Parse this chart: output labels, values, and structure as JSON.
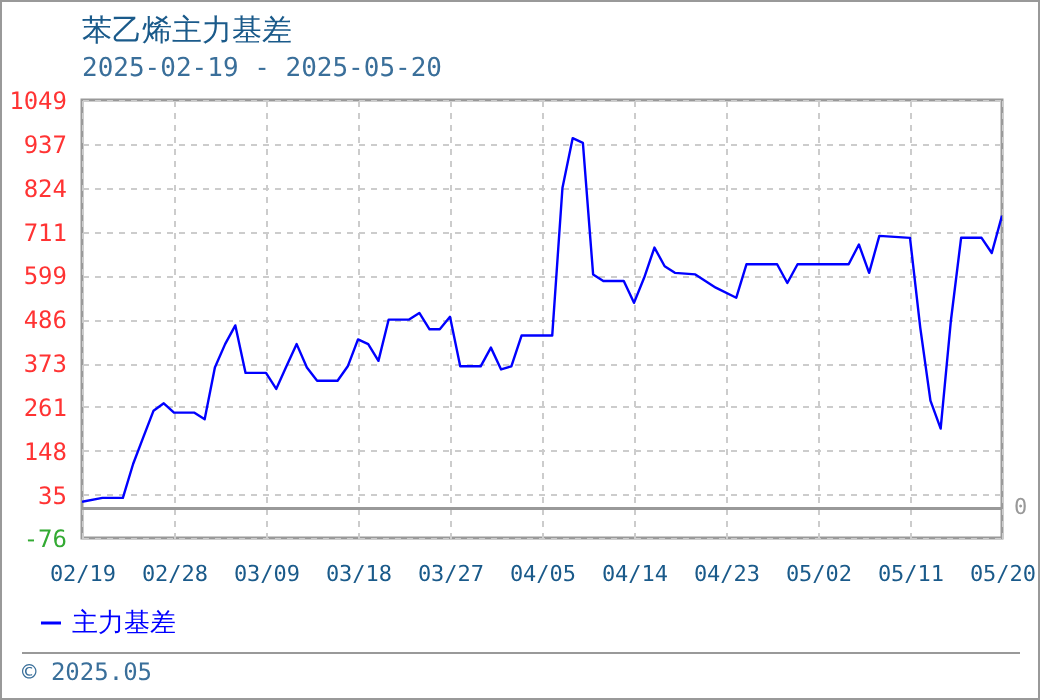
{
  "chart_data": {
    "type": "line",
    "title": "苯乙烯主力基差",
    "subtitle": "2025-02-19 - 2025-05-20",
    "x": [
      "2025-02-19",
      "2025-02-21",
      "2025-02-23",
      "2025-02-24",
      "2025-02-25",
      "2025-02-26",
      "2025-02-27",
      "2025-02-28",
      "2025-03-02",
      "2025-03-03",
      "2025-03-04",
      "2025-03-05",
      "2025-03-06",
      "2025-03-07",
      "2025-03-09",
      "2025-03-10",
      "2025-03-11",
      "2025-03-12",
      "2025-03-13",
      "2025-03-14",
      "2025-03-16",
      "2025-03-17",
      "2025-03-18",
      "2025-03-19",
      "2025-03-20",
      "2025-03-21",
      "2025-03-23",
      "2025-03-24",
      "2025-03-25",
      "2025-03-26",
      "2025-03-27",
      "2025-03-28",
      "2025-03-30",
      "2025-03-31",
      "2025-04-01",
      "2025-04-02",
      "2025-04-03",
      "2025-04-06",
      "2025-04-07",
      "2025-04-08",
      "2025-04-09",
      "2025-04-10",
      "2025-04-11",
      "2025-04-13",
      "2025-04-14",
      "2025-04-15",
      "2025-04-16",
      "2025-04-17",
      "2025-04-18",
      "2025-04-20",
      "2025-04-22",
      "2025-04-24",
      "2025-04-25",
      "2025-04-28",
      "2025-04-29",
      "2025-04-30",
      "2025-05-05",
      "2025-05-06",
      "2025-05-07",
      "2025-05-08",
      "2025-05-11",
      "2025-05-12",
      "2025-05-13",
      "2025-05-14",
      "2025-05-15",
      "2025-05-16",
      "2025-05-18",
      "2025-05-19",
      "2025-05-20"
    ],
    "series": [
      {
        "name": "主力基差",
        "color": "#0000ff",
        "values": [
          17,
          27,
          27,
          114,
          183,
          251,
          270,
          246,
          246,
          229,
          362,
          422,
          470,
          348,
          348,
          307,
          365,
          422,
          362,
          328,
          328,
          365,
          434,
          422,
          379,
          485,
          485,
          502,
          460,
          460,
          492,
          365,
          365,
          413,
          357,
          365,
          444,
          444,
          823,
          951,
          939,
          601,
          584,
          584,
          528,
          593,
          670,
          622,
          605,
          601,
          567,
          541,
          627,
          627,
          579,
          627,
          627,
          678,
          605,
          700,
          695,
          465,
          277,
          205,
          482,
          695,
          695,
          656,
          752
        ]
      }
    ],
    "xlim": [
      "2025-02-19",
      "2025-05-20"
    ],
    "xticks": [
      {
        "value": "2025-02-19",
        "label": "02/19"
      },
      {
        "value": "2025-02-28",
        "label": "02/28"
      },
      {
        "value": "2025-03-09",
        "label": "03/09"
      },
      {
        "value": "2025-03-18",
        "label": "03/18"
      },
      {
        "value": "2025-03-27",
        "label": "03/27"
      },
      {
        "value": "2025-04-05",
        "label": "04/05"
      },
      {
        "value": "2025-04-14",
        "label": "04/14"
      },
      {
        "value": "2025-04-23",
        "label": "04/23"
      },
      {
        "value": "2025-05-02",
        "label": "05/02"
      },
      {
        "value": "2025-05-11",
        "label": "05/11"
      },
      {
        "value": "2025-05-20",
        "label": "05/20"
      }
    ],
    "ylim": [
      -76,
      1049
    ],
    "yticks": [
      -76,
      35,
      148,
      261,
      373,
      486,
      599,
      711,
      824,
      937,
      1049
    ],
    "ref_lines": [
      {
        "axis": "y",
        "value": 0,
        "label": "0",
        "color": "#999999"
      }
    ],
    "grid": true,
    "legend": "bottom left",
    "marker": "none",
    "line_style": "solid",
    "annotations": [
      "© 2025.05"
    ]
  }
}
